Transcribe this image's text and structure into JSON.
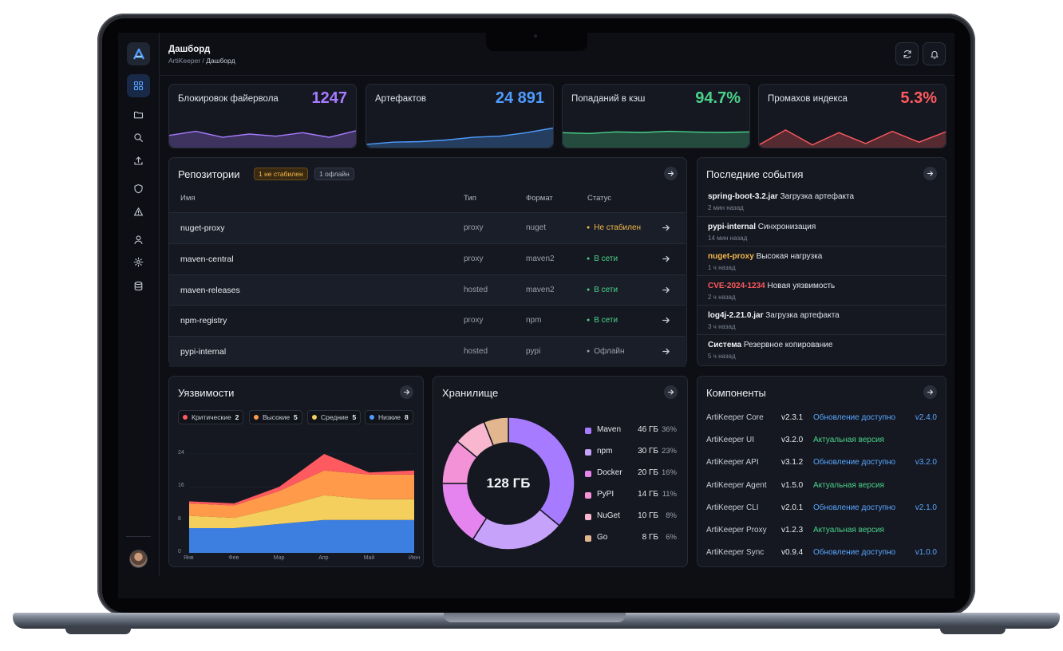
{
  "header": {
    "title": "Дашборд",
    "crumb_root": "ArtiKeeper /",
    "crumb_current": "Дашборд"
  },
  "sidebar": {
    "items": [
      {
        "icon": "dashboard-icon",
        "active": true
      },
      {
        "icon": "folder-icon"
      },
      {
        "icon": "search-icon"
      },
      {
        "icon": "upload-icon"
      },
      {
        "icon": "shield-icon"
      },
      {
        "icon": "warning-icon"
      },
      {
        "icon": "user-icon"
      },
      {
        "icon": "gear-icon"
      },
      {
        "icon": "database-icon"
      }
    ]
  },
  "kpis": [
    {
      "label": "Блокировок файервола",
      "value": "1247",
      "color": "#a77bff",
      "trend": [
        0.45,
        0.6,
        0.38,
        0.5,
        0.42,
        0.55,
        0.38,
        0.62
      ]
    },
    {
      "label": "Артефактов",
      "value": "24 891",
      "color": "#4f9dff",
      "trend": [
        0.12,
        0.2,
        0.22,
        0.28,
        0.38,
        0.42,
        0.55,
        0.72
      ]
    },
    {
      "label": "Попаданий в кэш",
      "value": "94.7%",
      "color": "#4bd28a",
      "trend": [
        0.55,
        0.52,
        0.58,
        0.56,
        0.6,
        0.57,
        0.56,
        0.58
      ]
    },
    {
      "label": "Промахов индекса",
      "value": "5.3%",
      "color": "#ff5a5f",
      "trend": [
        0.1,
        0.65,
        0.1,
        0.55,
        0.15,
        0.6,
        0.2,
        0.58
      ]
    }
  ],
  "repositories": {
    "title": "Репозитории",
    "badge_unstable": "1 не стабилен",
    "badge_offline": "1 офлайн",
    "columns": [
      "Имя",
      "Тип",
      "Формат",
      "Статус"
    ],
    "rows": [
      {
        "name": "nuget-proxy",
        "type": "proxy",
        "format": "nuget",
        "status": "Не стабилен",
        "status_color": "#f5b94a"
      },
      {
        "name": "maven-central",
        "type": "proxy",
        "format": "maven2",
        "status": "В сети",
        "status_color": "#4bd28a"
      },
      {
        "name": "maven-releases",
        "type": "hosted",
        "format": "maven2",
        "status": "В сети",
        "status_color": "#4bd28a"
      },
      {
        "name": "npm-registry",
        "type": "proxy",
        "format": "npm",
        "status": "В сети",
        "status_color": "#4bd28a"
      },
      {
        "name": "pypi-internal",
        "type": "hosted",
        "format": "pypi",
        "status": "Офлайн",
        "status_color": "#9aa1ae"
      }
    ]
  },
  "events": {
    "title": "Последние события",
    "items": [
      {
        "subject": "spring-boot-3.2.jar",
        "action": "Загрузка артефакта",
        "time": "2 мин назад",
        "color": "#f1f3f7"
      },
      {
        "subject": "pypi-internal",
        "action": "Синхронизация",
        "time": "14 мин назад",
        "color": "#f1f3f7"
      },
      {
        "subject": "nuget-proxy",
        "action": "Высокая нагрузка",
        "time": "1 ч назад",
        "color": "#f5b94a"
      },
      {
        "subject": "CVE-2024-1234",
        "action": "Новая уязвимость",
        "time": "2 ч назад",
        "color": "#ff5a5f"
      },
      {
        "subject": "log4j-2.21.0.jar",
        "action": "Загрузка артефакта",
        "time": "3 ч назад",
        "color": "#f1f3f7"
      },
      {
        "subject": "Система",
        "action": "Резервное копирование",
        "time": "5 ч назад",
        "color": "#f1f3f7"
      }
    ]
  },
  "vulnerabilities": {
    "title": "Уязвимости",
    "legend": [
      {
        "label": "Критические",
        "count": "2",
        "color": "#ff5a5f"
      },
      {
        "label": "Высокие",
        "count": "5",
        "color": "#ff9a4a"
      },
      {
        "label": "Средние",
        "count": "5",
        "color": "#f5cf5e"
      },
      {
        "label": "Низкие",
        "count": "8",
        "color": "#4f9dff"
      }
    ]
  },
  "chart_data": {
    "type": "area",
    "stacked": true,
    "categories": [
      "Янв",
      "Фев",
      "Мар",
      "Апр",
      "Май",
      "Июн"
    ],
    "y_ticks": [
      "0",
      "8",
      "16",
      "24"
    ],
    "ylim": [
      0,
      24
    ],
    "series": [
      {
        "name": "Низкие",
        "color": "#3d7fe0",
        "values": [
          6,
          6,
          7,
          8,
          8,
          8
        ]
      },
      {
        "name": "Средние",
        "color": "#f5cf5e",
        "values": [
          3,
          2.5,
          4,
          6,
          5,
          5
        ]
      },
      {
        "name": "Высокие",
        "color": "#ff9a4a",
        "values": [
          3,
          3,
          4,
          6,
          6,
          6
        ]
      },
      {
        "name": "Критические",
        "color": "#ff5a5f",
        "values": [
          0.5,
          0.5,
          1,
          4,
          0.5,
          1
        ]
      }
    ]
  },
  "storage": {
    "title": "Хранилище",
    "total": "128 ГБ",
    "items": [
      {
        "name": "Maven",
        "size": "46 ГБ",
        "pct": "36%",
        "value": 36,
        "color": "#a77bff"
      },
      {
        "name": "npm",
        "size": "30 ГБ",
        "pct": "23%",
        "value": 23,
        "color": "#c6a2fb"
      },
      {
        "name": "Docker",
        "size": "20 ГБ",
        "pct": "16%",
        "value": 16,
        "color": "#e684ef"
      },
      {
        "name": "PyPI",
        "size": "14 ГБ",
        "pct": "11%",
        "value": 11,
        "color": "#f492d8"
      },
      {
        "name": "NuGet",
        "size": "10 ГБ",
        "pct": "8%",
        "value": 8,
        "color": "#f8b6cf"
      },
      {
        "name": "Go",
        "size": "8 ГБ",
        "pct": "6%",
        "value": 6,
        "color": "#e2b78f"
      }
    ]
  },
  "components": {
    "title": "Компоненты",
    "rows": [
      {
        "name": "ArtiKeeper Core",
        "version": "v2.3.1",
        "status": "Обновление доступно",
        "status_color": "#58a6ff",
        "new_version": "v2.4.0"
      },
      {
        "name": "ArtiKeeper UI",
        "version": "v3.2.0",
        "status": "Актуальная версия",
        "status_color": "#4bd28a",
        "new_version": ""
      },
      {
        "name": "ArtiKeeper API",
        "version": "v3.1.2",
        "status": "Обновление доступно",
        "status_color": "#58a6ff",
        "new_version": "v3.2.0"
      },
      {
        "name": "ArtiKeeper Agent",
        "version": "v1.5.0",
        "status": "Актуальная версия",
        "status_color": "#4bd28a",
        "new_version": ""
      },
      {
        "name": "ArtiKeeper CLI",
        "version": "v2.0.1",
        "status": "Обновление доступно",
        "status_color": "#58a6ff",
        "new_version": "v2.1.0"
      },
      {
        "name": "ArtiKeeper Proxy",
        "version": "v1.2.3",
        "status": "Актуальная версия",
        "status_color": "#4bd28a",
        "new_version": ""
      },
      {
        "name": "ArtiKeeper Sync",
        "version": "v0.9.4",
        "status": "Обновление доступно",
        "status_color": "#58a6ff",
        "new_version": "v1.0.0"
      }
    ]
  }
}
